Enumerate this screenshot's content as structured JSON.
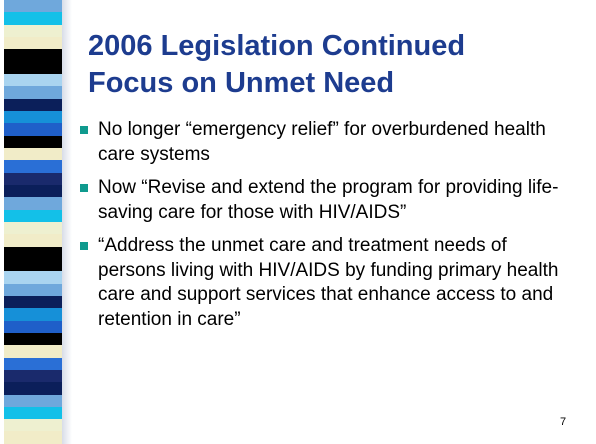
{
  "slide": {
    "title": [
      "2006 Legislation Continued",
      "Focus on Unmet Need"
    ],
    "bullets": [
      "No longer “emergency relief” for overburdened health care systems",
      "Now “Revise and extend the program for providing life-saving care for those with HIV/AIDS”",
      "“Address the unmet care and treatment needs of persons living with HIV/AIDS by funding primary health care and support services that enhance access to and retention in care”"
    ],
    "page_number": "7"
  }
}
